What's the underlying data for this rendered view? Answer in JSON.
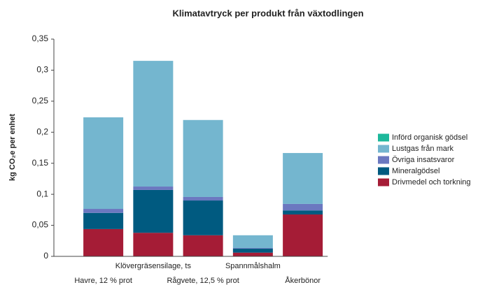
{
  "chart_data": {
    "type": "stacked_bar",
    "title": "Klimatavtryck per produkt från växtodlingen",
    "y_label": "kg CO₂e per enhet",
    "categories": [
      "Havre, 12 % prot",
      "Klövergräsensilage, ts",
      "Rågvete, 12,5 % prot",
      "Spannmålshalm",
      "Åkerbönor"
    ],
    "series": [
      {
        "name": "Införd organisk gödsel",
        "color": "#1db89b",
        "values": [
          0,
          0,
          0,
          0,
          0
        ]
      },
      {
        "name": "Lustgas från mark",
        "color": "#74b6cf",
        "values": [
          0.1475,
          0.2025,
          0.124,
          0.0205,
          0.082
        ]
      },
      {
        "name": "Övriga insatsvaror",
        "color": "#6b78c0",
        "values": [
          0.0065,
          0.0055,
          0.0057,
          0.001,
          0.0105
        ]
      },
      {
        "name": "Mineralgödsel",
        "color": "#005a80",
        "values": [
          0.026,
          0.069,
          0.056,
          0.0065,
          0.0065
        ]
      },
      {
        "name": "Drivmedel och torkning",
        "color": "#a51c36",
        "values": [
          0.044,
          0.038,
          0.034,
          0.006,
          0.0675
        ]
      }
    ],
    "ylim": [
      0,
      0.35
    ],
    "yticks": [
      0,
      {
        "value": 0.05,
        "label": "0,05"
      },
      {
        "value": 0.1,
        "label": "0,1"
      },
      {
        "value": 0.15,
        "label": "0,15"
      },
      {
        "value": 0.2,
        "label": "0,2"
      },
      {
        "value": 0.25,
        "label": "0,25"
      },
      {
        "value": 0.3,
        "label": "0,3"
      },
      {
        "value": 0.35,
        "label": "0,35"
      }
    ],
    "legend": "right"
  }
}
